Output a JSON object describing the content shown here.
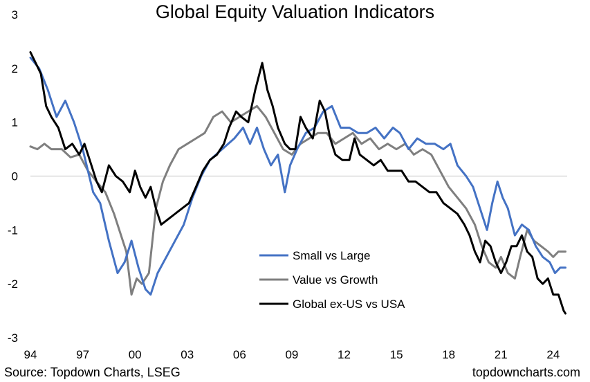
{
  "title": "Global Equity Valuation Indicators",
  "source": "Source: Topdown Charts, LSEG",
  "brand": "topdowncharts.com",
  "chart_data": {
    "type": "line",
    "title": "Global Equity Valuation Indicators",
    "xlabel": "",
    "ylabel": "",
    "xlim": [
      1994.0,
      2024.8
    ],
    "ylim": [
      -3,
      3
    ],
    "yticks": [
      3,
      2,
      1,
      0,
      -1,
      -2,
      -3
    ],
    "xticks": [
      {
        "value": 1994,
        "label": "94"
      },
      {
        "value": 1997,
        "label": "97"
      },
      {
        "value": 2000,
        "label": "00"
      },
      {
        "value": 2003,
        "label": "03"
      },
      {
        "value": 2006,
        "label": "06"
      },
      {
        "value": 2009,
        "label": "09"
      },
      {
        "value": 2012,
        "label": "12"
      },
      {
        "value": 2015,
        "label": "15"
      },
      {
        "value": 2018,
        "label": "18"
      },
      {
        "value": 2021,
        "label": "21"
      },
      {
        "value": 2024,
        "label": "24"
      }
    ],
    "grid": false,
    "zero_line": true,
    "legend_position": "bottom-right",
    "series": [
      {
        "name": "Small vs Large",
        "color": "#4472C4",
        "points": [
          [
            1994.0,
            2.2
          ],
          [
            1994.5,
            2.0
          ],
          [
            1995.0,
            1.6
          ],
          [
            1995.5,
            1.1
          ],
          [
            1996.0,
            1.4
          ],
          [
            1996.5,
            1.0
          ],
          [
            1997.0,
            0.5
          ],
          [
            1997.3,
            0.1
          ],
          [
            1997.6,
            -0.3
          ],
          [
            1998.0,
            -0.5
          ],
          [
            1998.5,
            -1.2
          ],
          [
            1999.0,
            -1.8
          ],
          [
            1999.4,
            -1.6
          ],
          [
            1999.8,
            -1.2
          ],
          [
            2000.2,
            -1.7
          ],
          [
            2000.6,
            -2.1
          ],
          [
            2000.9,
            -2.2
          ],
          [
            2001.3,
            -1.8
          ],
          [
            2001.8,
            -1.5
          ],
          [
            2002.3,
            -1.2
          ],
          [
            2002.8,
            -0.9
          ],
          [
            2003.3,
            -0.4
          ],
          [
            2003.8,
            0.0
          ],
          [
            2004.3,
            0.3
          ],
          [
            2005.0,
            0.5
          ],
          [
            2005.7,
            0.7
          ],
          [
            2006.2,
            0.9
          ],
          [
            2006.6,
            0.6
          ],
          [
            2007.0,
            0.9
          ],
          [
            2007.4,
            0.5
          ],
          [
            2007.8,
            0.2
          ],
          [
            2008.2,
            0.4
          ],
          [
            2008.6,
            -0.3
          ],
          [
            2008.9,
            0.2
          ],
          [
            2009.3,
            0.5
          ],
          [
            2009.8,
            0.8
          ],
          [
            2010.3,
            0.9
          ],
          [
            2010.8,
            1.2
          ],
          [
            2011.3,
            1.3
          ],
          [
            2011.8,
            0.9
          ],
          [
            2012.3,
            0.9
          ],
          [
            2012.8,
            0.8
          ],
          [
            2013.3,
            0.8
          ],
          [
            2013.8,
            0.9
          ],
          [
            2014.3,
            0.7
          ],
          [
            2014.8,
            0.9
          ],
          [
            2015.2,
            0.8
          ],
          [
            2015.7,
            0.5
          ],
          [
            2016.2,
            0.7
          ],
          [
            2016.7,
            0.6
          ],
          [
            2017.2,
            0.6
          ],
          [
            2017.7,
            0.5
          ],
          [
            2018.1,
            0.6
          ],
          [
            2018.5,
            0.2
          ],
          [
            2019.0,
            0.0
          ],
          [
            2019.4,
            -0.2
          ],
          [
            2019.8,
            -0.6
          ],
          [
            2020.2,
            -1.0
          ],
          [
            2020.5,
            -0.5
          ],
          [
            2020.8,
            -0.1
          ],
          [
            2021.1,
            -0.4
          ],
          [
            2021.4,
            -0.6
          ],
          [
            2021.8,
            -1.1
          ],
          [
            2022.2,
            -0.9
          ],
          [
            2022.6,
            -1.0
          ],
          [
            2023.0,
            -1.3
          ],
          [
            2023.4,
            -1.5
          ],
          [
            2023.8,
            -1.6
          ],
          [
            2024.1,
            -1.8
          ],
          [
            2024.4,
            -1.7
          ],
          [
            2024.7,
            -1.7
          ]
        ]
      },
      {
        "name": "Value vs Growth",
        "color": "#7F7F7F",
        "points": [
          [
            1994.0,
            0.55
          ],
          [
            1994.4,
            0.5
          ],
          [
            1994.8,
            0.6
          ],
          [
            1995.2,
            0.5
          ],
          [
            1995.8,
            0.5
          ],
          [
            1996.3,
            0.35
          ],
          [
            1996.8,
            0.4
          ],
          [
            1997.3,
            0.1
          ],
          [
            1997.8,
            -0.1
          ],
          [
            1998.3,
            -0.3
          ],
          [
            1998.8,
            -0.7
          ],
          [
            1999.2,
            -1.1
          ],
          [
            1999.5,
            -1.4
          ],
          [
            1999.8,
            -2.2
          ],
          [
            2000.1,
            -1.9
          ],
          [
            2000.4,
            -2.0
          ],
          [
            2000.8,
            -1.8
          ],
          [
            2001.2,
            -0.6
          ],
          [
            2001.6,
            -0.1
          ],
          [
            2002.0,
            0.2
          ],
          [
            2002.5,
            0.5
          ],
          [
            2003.0,
            0.6
          ],
          [
            2003.5,
            0.7
          ],
          [
            2004.0,
            0.8
          ],
          [
            2004.5,
            1.1
          ],
          [
            2005.0,
            1.2
          ],
          [
            2005.5,
            1.0
          ],
          [
            2006.0,
            1.1
          ],
          [
            2006.5,
            1.2
          ],
          [
            2007.0,
            1.3
          ],
          [
            2007.5,
            1.1
          ],
          [
            2008.0,
            0.8
          ],
          [
            2008.5,
            0.5
          ],
          [
            2009.0,
            0.4
          ],
          [
            2009.5,
            0.6
          ],
          [
            2010.0,
            0.7
          ],
          [
            2010.5,
            0.8
          ],
          [
            2011.0,
            0.8
          ],
          [
            2011.5,
            0.6
          ],
          [
            2012.0,
            0.7
          ],
          [
            2012.5,
            0.8
          ],
          [
            2013.0,
            0.6
          ],
          [
            2013.5,
            0.7
          ],
          [
            2014.0,
            0.5
          ],
          [
            2014.5,
            0.6
          ],
          [
            2015.0,
            0.5
          ],
          [
            2015.5,
            0.6
          ],
          [
            2016.0,
            0.4
          ],
          [
            2016.5,
            0.5
          ],
          [
            2017.0,
            0.4
          ],
          [
            2017.5,
            0.1
          ],
          [
            2018.0,
            -0.2
          ],
          [
            2018.5,
            -0.4
          ],
          [
            2019.0,
            -0.6
          ],
          [
            2019.5,
            -0.9
          ],
          [
            2019.9,
            -1.3
          ],
          [
            2020.3,
            -1.6
          ],
          [
            2020.7,
            -1.7
          ],
          [
            2021.0,
            -1.5
          ],
          [
            2021.4,
            -1.8
          ],
          [
            2021.8,
            -1.9
          ],
          [
            2022.1,
            -1.5
          ],
          [
            2022.5,
            -1.0
          ],
          [
            2022.9,
            -1.2
          ],
          [
            2023.3,
            -1.3
          ],
          [
            2023.7,
            -1.4
          ],
          [
            2024.0,
            -1.5
          ],
          [
            2024.3,
            -1.4
          ],
          [
            2024.7,
            -1.4
          ]
        ]
      },
      {
        "name": "Global ex-US vs USA",
        "color": "#000000",
        "points": [
          [
            1994.0,
            2.3
          ],
          [
            1994.3,
            2.1
          ],
          [
            1994.6,
            1.9
          ],
          [
            1994.9,
            1.3
          ],
          [
            1995.2,
            1.1
          ],
          [
            1995.6,
            0.9
          ],
          [
            1996.0,
            0.5
          ],
          [
            1996.4,
            0.6
          ],
          [
            1996.8,
            0.4
          ],
          [
            1997.1,
            0.6
          ],
          [
            1997.4,
            0.3
          ],
          [
            1997.8,
            -0.1
          ],
          [
            1998.1,
            -0.3
          ],
          [
            1998.5,
            0.2
          ],
          [
            1998.9,
            0.0
          ],
          [
            1999.3,
            -0.1
          ],
          [
            1999.7,
            -0.3
          ],
          [
            2000.0,
            0.1
          ],
          [
            2000.3,
            -0.2
          ],
          [
            2000.6,
            -0.4
          ],
          [
            2000.9,
            -0.2
          ],
          [
            2001.2,
            -0.6
          ],
          [
            2001.5,
            -0.9
          ],
          [
            2001.9,
            -0.8
          ],
          [
            2002.3,
            -0.7
          ],
          [
            2002.7,
            -0.6
          ],
          [
            2003.1,
            -0.5
          ],
          [
            2003.5,
            -0.2
          ],
          [
            2003.9,
            0.1
          ],
          [
            2004.3,
            0.3
          ],
          [
            2004.7,
            0.4
          ],
          [
            2005.1,
            0.6
          ],
          [
            2005.4,
            0.9
          ],
          [
            2005.8,
            1.2
          ],
          [
            2006.1,
            1.1
          ],
          [
            2006.5,
            1.0
          ],
          [
            2006.9,
            1.6
          ],
          [
            2007.3,
            2.1
          ],
          [
            2007.6,
            1.6
          ],
          [
            2007.9,
            1.3
          ],
          [
            2008.2,
            0.9
          ],
          [
            2008.6,
            0.6
          ],
          [
            2008.9,
            0.5
          ],
          [
            2009.2,
            0.5
          ],
          [
            2009.5,
            1.1
          ],
          [
            2009.8,
            0.9
          ],
          [
            2010.2,
            0.7
          ],
          [
            2010.6,
            1.4
          ],
          [
            2010.9,
            1.2
          ],
          [
            2011.2,
            0.7
          ],
          [
            2011.5,
            0.4
          ],
          [
            2011.9,
            0.3
          ],
          [
            2012.3,
            0.3
          ],
          [
            2012.6,
            0.7
          ],
          [
            2012.9,
            0.4
          ],
          [
            2013.3,
            0.3
          ],
          [
            2013.7,
            0.2
          ],
          [
            2014.1,
            0.3
          ],
          [
            2014.5,
            0.1
          ],
          [
            2014.9,
            0.1
          ],
          [
            2015.3,
            0.1
          ],
          [
            2015.7,
            -0.1
          ],
          [
            2016.1,
            -0.1
          ],
          [
            2016.5,
            -0.2
          ],
          [
            2016.9,
            -0.3
          ],
          [
            2017.3,
            -0.3
          ],
          [
            2017.7,
            -0.5
          ],
          [
            2018.1,
            -0.6
          ],
          [
            2018.5,
            -0.7
          ],
          [
            2018.9,
            -0.9
          ],
          [
            2019.2,
            -1.1
          ],
          [
            2019.5,
            -1.4
          ],
          [
            2019.8,
            -1.6
          ],
          [
            2020.1,
            -1.2
          ],
          [
            2020.4,
            -1.3
          ],
          [
            2020.7,
            -1.6
          ],
          [
            2021.0,
            -1.8
          ],
          [
            2021.3,
            -1.6
          ],
          [
            2021.6,
            -1.3
          ],
          [
            2021.9,
            -1.3
          ],
          [
            2022.2,
            -1.1
          ],
          [
            2022.5,
            -1.4
          ],
          [
            2022.8,
            -1.5
          ],
          [
            2023.1,
            -1.9
          ],
          [
            2023.4,
            -2.0
          ],
          [
            2023.7,
            -1.9
          ],
          [
            2024.0,
            -2.2
          ],
          [
            2024.3,
            -2.2
          ],
          [
            2024.6,
            -2.5
          ],
          [
            2024.7,
            -2.55
          ]
        ]
      }
    ]
  }
}
